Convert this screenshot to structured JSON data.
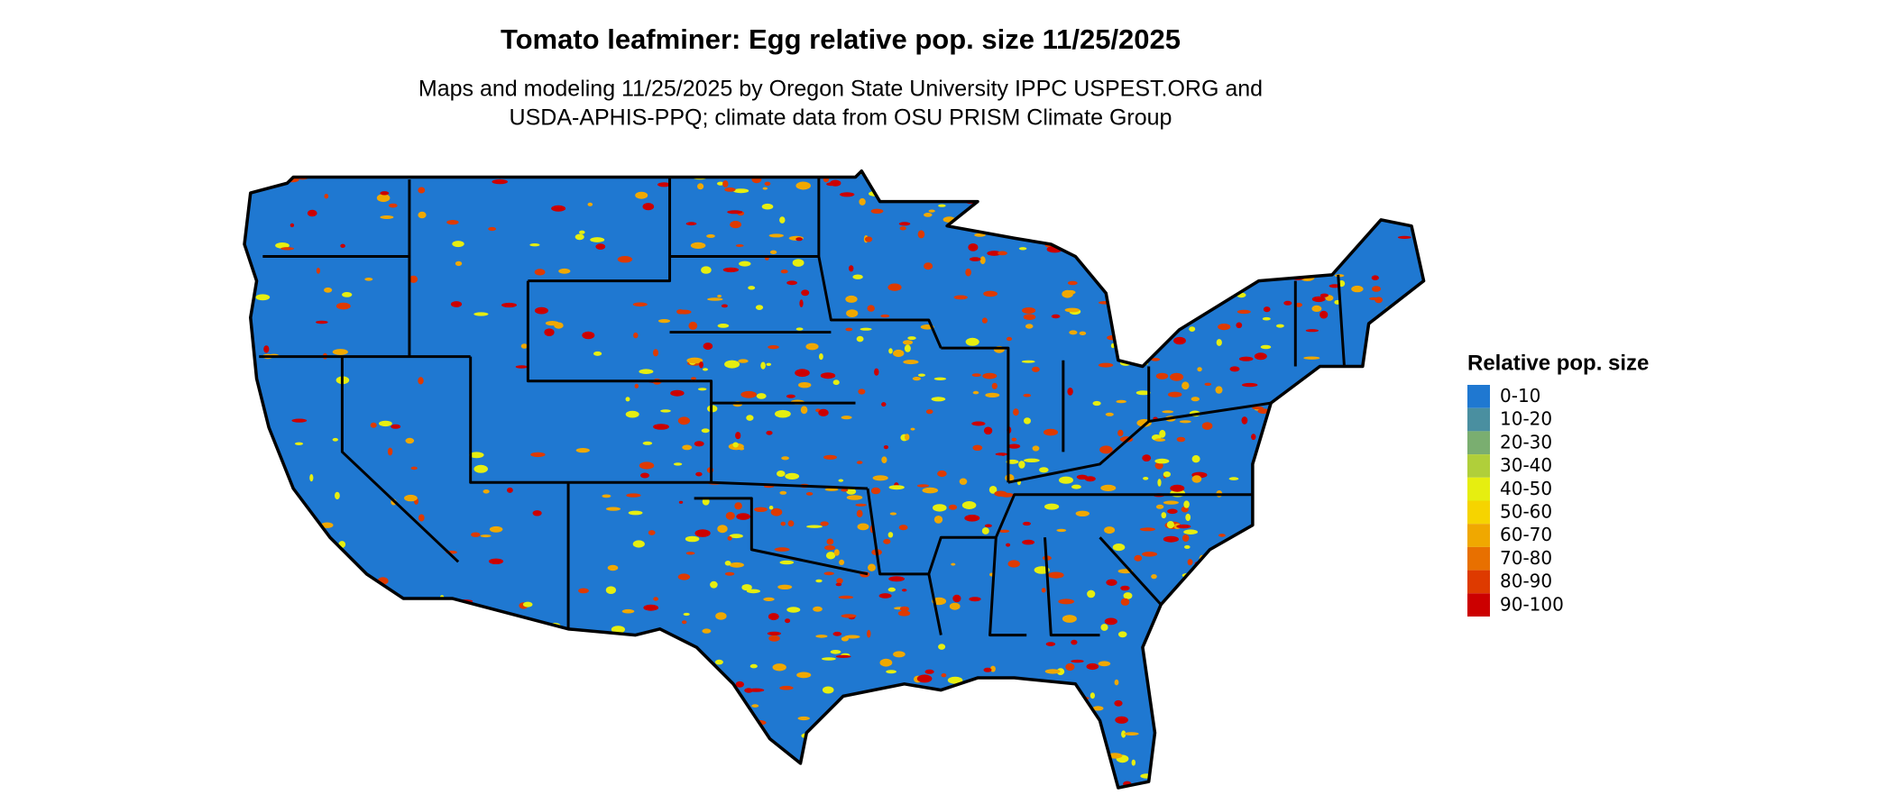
{
  "header": {
    "title": "Tomato leafminer: Egg relative pop. size 11/25/2025",
    "subtitle_lines": [
      "Maps and modeling 11/25/2025 by Oregon State University IPPC USPEST.ORG and",
      "USDA-APHIS-PPQ; climate data from OSU PRISM Climate Group"
    ]
  },
  "legend": {
    "title": "Relative pop. size",
    "items": [
      {
        "label": "0-10",
        "color": "#1f78d1"
      },
      {
        "label": "10-20",
        "color": "#4a8fa0"
      },
      {
        "label": "20-30",
        "color": "#7aae70"
      },
      {
        "label": "30-40",
        "color": "#b0cf3a"
      },
      {
        "label": "40-50",
        "color": "#e6ee10"
      },
      {
        "label": "50-60",
        "color": "#f6d400"
      },
      {
        "label": "60-70",
        "color": "#f0a800"
      },
      {
        "label": "70-80",
        "color": "#e87000"
      },
      {
        "label": "80-90",
        "color": "#de3a00"
      },
      {
        "label": "90-100",
        "color": "#cc0000"
      }
    ]
  }
}
